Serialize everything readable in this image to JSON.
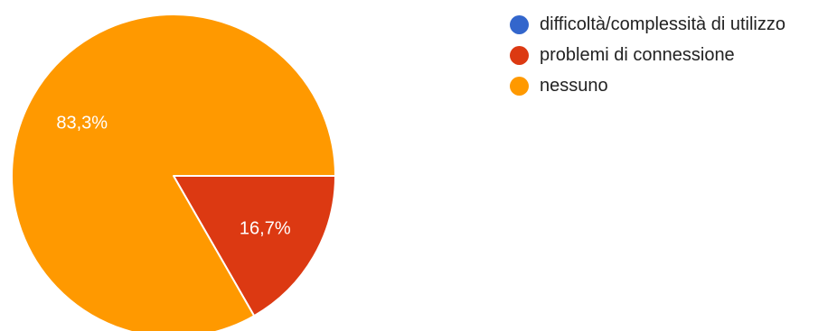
{
  "chart_data": {
    "type": "pie",
    "categories": [
      "difficoltà/complessità di utilizzo",
      "problemi di connessione",
      "nessuno"
    ],
    "values": [
      0,
      16.7,
      83.3
    ],
    "value_labels": [
      "",
      "16,7%",
      "83,3%"
    ],
    "colors": [
      "#3366cc",
      "#dc3912",
      "#ff9900"
    ],
    "legend_position": "right",
    "start_angle_deg": 90,
    "direction": "clockwise"
  }
}
